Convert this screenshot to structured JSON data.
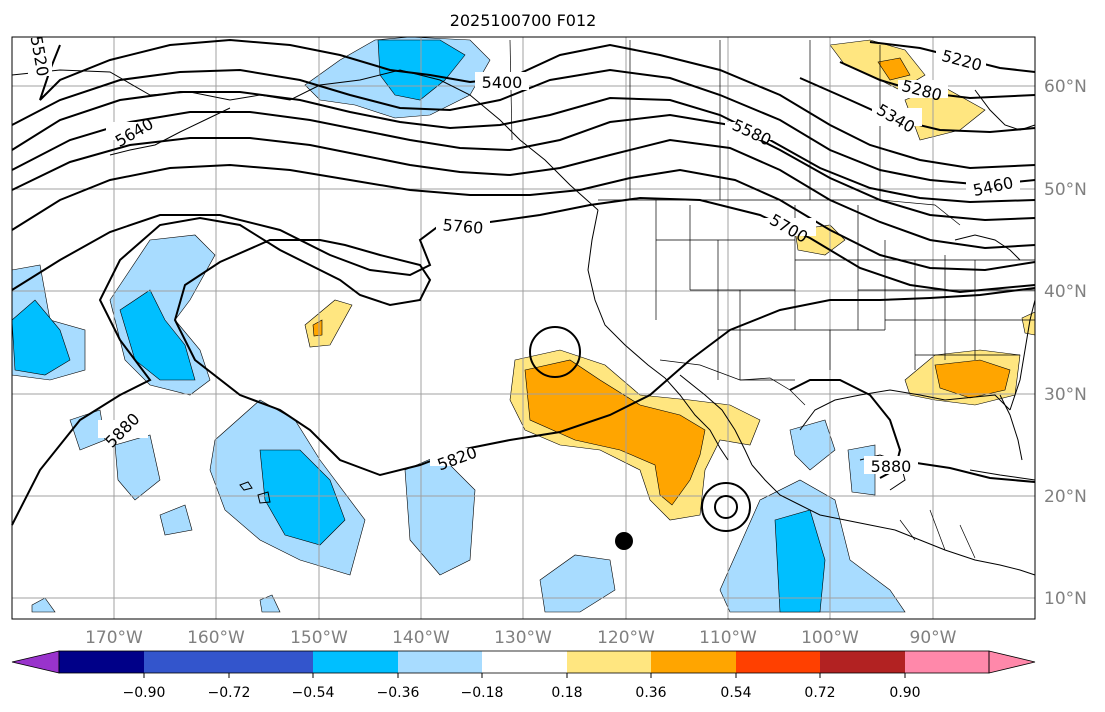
{
  "figure": {
    "title": "2025100700 F012",
    "colors": {
      "grid": "#a0a0a0",
      "coast": "#000000",
      "contour": "#000000",
      "axis_label": "#808080"
    }
  },
  "map": {
    "lon_labels": [
      "170°W",
      "160°W",
      "150°W",
      "140°W",
      "130°W",
      "120°W",
      "110°W",
      "100°W",
      "90°W"
    ],
    "lat_labels": [
      "60°N",
      "50°N",
      "40°N",
      "30°N",
      "20°N",
      "10°N"
    ],
    "height_contour_labels": [
      "5220",
      "5280",
      "5340",
      "5400",
      "5460",
      "5520",
      "5580",
      "5640",
      "5700",
      "5760",
      "5820",
      "5880"
    ],
    "shading_field": "anomaly",
    "shading_colors": {
      "neg_strong": "#00bfff",
      "neg_weak": "#a8dcff",
      "pos_weak": "#ffe680",
      "pos_mid": "#ffa500",
      "pos_strong": "#ff4000"
    },
    "marker": "low-center-dot"
  },
  "colorbar": {
    "bins": [
      {
        "color": "#9933cc"
      },
      {
        "color": "#000088"
      },
      {
        "color": "#3355cc"
      },
      {
        "color": "#00bfff"
      },
      {
        "color": "#a8dcff"
      },
      {
        "color": "#ffffff"
      },
      {
        "color": "#ffe680"
      },
      {
        "color": "#ffa500"
      },
      {
        "color": "#ff4000"
      },
      {
        "color": "#b22222"
      },
      {
        "color": "#ff88aa"
      }
    ],
    "tick_labels": [
      "−0.90",
      "−0.72",
      "−0.54",
      "−0.36",
      "−0.18",
      "0.18",
      "0.36",
      "0.54",
      "0.72",
      "0.90"
    ]
  }
}
